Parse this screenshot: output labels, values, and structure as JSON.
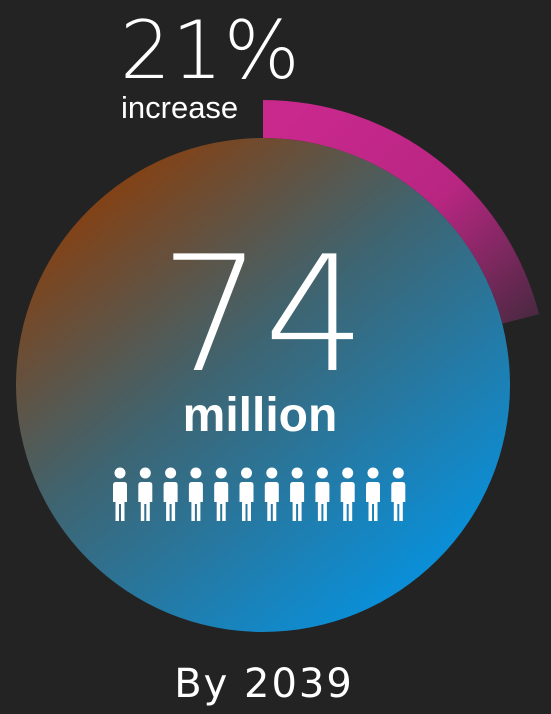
{
  "increase": {
    "value": "21%",
    "label": "increase",
    "fraction": 0.21
  },
  "total": {
    "value": "74",
    "unit": "million"
  },
  "people_icon": {
    "icon": "person-icon",
    "count": 12
  },
  "caption": "By 2039",
  "colors": {
    "background": "#232323",
    "arc_magenta": "#c9288d",
    "circle_orange": "#8a3e0c",
    "circle_blue": "#0b8ed6",
    "text": "#ffffff"
  }
}
